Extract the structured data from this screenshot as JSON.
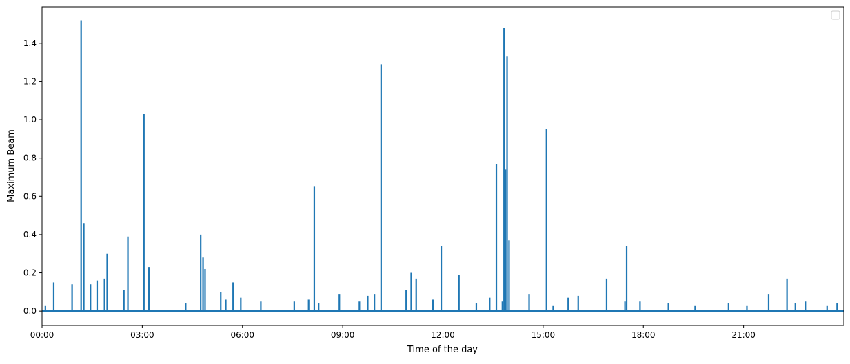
{
  "chart_data": {
    "type": "line",
    "title": "",
    "xlabel": "Time of the day",
    "ylabel": "Maximum Beam",
    "xlim_hours": [
      0,
      24
    ],
    "ylim": [
      -0.075,
      1.59
    ],
    "x_ticks": [
      {
        "hour": 0,
        "label": "00:00"
      },
      {
        "hour": 3,
        "label": "03:00"
      },
      {
        "hour": 6,
        "label": "06:00"
      },
      {
        "hour": 9,
        "label": "09:00"
      },
      {
        "hour": 12,
        "label": "12:00"
      },
      {
        "hour": 15,
        "label": "15:00"
      },
      {
        "hour": 18,
        "label": "18:00"
      },
      {
        "hour": 21,
        "label": "21:00"
      }
    ],
    "y_ticks": [
      {
        "value": 0.0,
        "label": "0.0"
      },
      {
        "value": 0.2,
        "label": "0.2"
      },
      {
        "value": 0.4,
        "label": "0.4"
      },
      {
        "value": 0.6,
        "label": "0.6"
      },
      {
        "value": 0.8,
        "label": "0.8"
      },
      {
        "value": 1.0,
        "label": "1.0"
      },
      {
        "value": 1.2,
        "label": "1.2"
      },
      {
        "value": 1.4,
        "label": "1.4"
      }
    ],
    "grid": false,
    "legend": {
      "placement": "top-right",
      "entries": []
    },
    "baseline": 0.0,
    "series": [
      {
        "color": "#1f77b4",
        "spikes": [
          {
            "hour": 0.1,
            "value": 0.03
          },
          {
            "hour": 0.35,
            "value": 0.15
          },
          {
            "hour": 0.9,
            "value": 0.14
          },
          {
            "hour": 1.17,
            "value": 1.52
          },
          {
            "hour": 1.25,
            "value": 0.46
          },
          {
            "hour": 1.45,
            "value": 0.14
          },
          {
            "hour": 1.65,
            "value": 0.16
          },
          {
            "hour": 1.87,
            "value": 0.17
          },
          {
            "hour": 1.95,
            "value": 0.3
          },
          {
            "hour": 2.45,
            "value": 0.11
          },
          {
            "hour": 2.57,
            "value": 0.39
          },
          {
            "hour": 3.05,
            "value": 1.03
          },
          {
            "hour": 3.2,
            "value": 0.23
          },
          {
            "hour": 4.3,
            "value": 0.04
          },
          {
            "hour": 4.75,
            "value": 0.4
          },
          {
            "hour": 4.82,
            "value": 0.28
          },
          {
            "hour": 4.88,
            "value": 0.22
          },
          {
            "hour": 5.35,
            "value": 0.1
          },
          {
            "hour": 5.5,
            "value": 0.06
          },
          {
            "hour": 5.72,
            "value": 0.15
          },
          {
            "hour": 5.95,
            "value": 0.07
          },
          {
            "hour": 6.55,
            "value": 0.05
          },
          {
            "hour": 7.55,
            "value": 0.05
          },
          {
            "hour": 7.98,
            "value": 0.06
          },
          {
            "hour": 8.15,
            "value": 0.65
          },
          {
            "hour": 8.28,
            "value": 0.04
          },
          {
            "hour": 8.9,
            "value": 0.09
          },
          {
            "hour": 9.5,
            "value": 0.05
          },
          {
            "hour": 9.75,
            "value": 0.08
          },
          {
            "hour": 9.95,
            "value": 0.09
          },
          {
            "hour": 10.15,
            "value": 1.29
          },
          {
            "hour": 10.9,
            "value": 0.11
          },
          {
            "hour": 11.05,
            "value": 0.2
          },
          {
            "hour": 11.2,
            "value": 0.17
          },
          {
            "hour": 11.7,
            "value": 0.06
          },
          {
            "hour": 11.95,
            "value": 0.34
          },
          {
            "hour": 12.48,
            "value": 0.19
          },
          {
            "hour": 13.0,
            "value": 0.04
          },
          {
            "hour": 13.4,
            "value": 0.07
          },
          {
            "hour": 13.6,
            "value": 0.77
          },
          {
            "hour": 13.78,
            "value": 0.05
          },
          {
            "hour": 13.83,
            "value": 1.48
          },
          {
            "hour": 13.87,
            "value": 0.74
          },
          {
            "hour": 13.92,
            "value": 1.33
          },
          {
            "hour": 13.98,
            "value": 0.37
          },
          {
            "hour": 14.58,
            "value": 0.09
          },
          {
            "hour": 15.1,
            "value": 0.95
          },
          {
            "hour": 15.3,
            "value": 0.03
          },
          {
            "hour": 15.75,
            "value": 0.07
          },
          {
            "hour": 16.05,
            "value": 0.08
          },
          {
            "hour": 16.9,
            "value": 0.17
          },
          {
            "hour": 17.45,
            "value": 0.05
          },
          {
            "hour": 17.5,
            "value": 0.34
          },
          {
            "hour": 17.9,
            "value": 0.05
          },
          {
            "hour": 18.75,
            "value": 0.04
          },
          {
            "hour": 19.55,
            "value": 0.03
          },
          {
            "hour": 20.55,
            "value": 0.04
          },
          {
            "hour": 21.1,
            "value": 0.03
          },
          {
            "hour": 21.75,
            "value": 0.09
          },
          {
            "hour": 22.3,
            "value": 0.17
          },
          {
            "hour": 22.55,
            "value": 0.04
          },
          {
            "hour": 22.85,
            "value": 0.05
          },
          {
            "hour": 23.5,
            "value": 0.03
          },
          {
            "hour": 23.8,
            "value": 0.04
          }
        ]
      }
    ]
  }
}
